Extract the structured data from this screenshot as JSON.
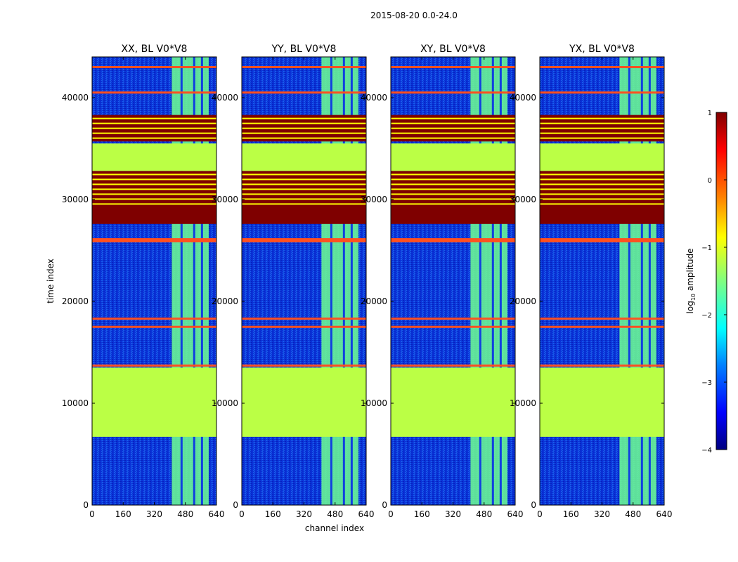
{
  "suptitle": "2015-08-20 0.0-24.0",
  "colorbar": {
    "label_prefix": "log",
    "label_sub": "10",
    "label_suffix": " amplitude",
    "range": [
      -4,
      1
    ],
    "ticks": [
      "1",
      "0",
      "−1",
      "−2",
      "−3",
      "−4"
    ],
    "tick_values": [
      1,
      0,
      -1,
      -2,
      -3,
      -4
    ],
    "stops": [
      "#00007f",
      "#0000ff",
      "#0080ff",
      "#00ffff",
      "#80ff80",
      "#ffff00",
      "#ff8000",
      "#ff0000",
      "#7f0000"
    ]
  },
  "chart_data": {
    "type": "heatmap",
    "xlabel": "channel index",
    "ylabel": "time index",
    "x_range": [
      0,
      640
    ],
    "y_range": [
      0,
      44000
    ],
    "x_ticks": [
      0,
      160,
      320,
      480,
      640
    ],
    "y_ticks": [
      0,
      10000,
      20000,
      30000,
      40000
    ],
    "x_tick_labels": [
      "0",
      "160",
      "320",
      "480",
      "640"
    ],
    "y_tick_labels": [
      "0",
      "10000",
      "20000",
      "30000",
      "40000"
    ],
    "panels": [
      {
        "title": "XX, BL V0*V8"
      },
      {
        "title": "YY, BL V0*V8"
      },
      {
        "title": "XY, BL V0*V8"
      },
      {
        "title": "YX, BL V0*V8"
      }
    ],
    "background_level": -3.2,
    "flagged_blocks": [
      {
        "y_from": 6700,
        "y_to": 13500,
        "value": -1.2
      },
      {
        "y_from": 32800,
        "y_to": 35500,
        "value": -1.2
      },
      {
        "y_from": 27600,
        "y_to": 29500,
        "value": 1
      },
      {
        "y_from": 29500,
        "y_to": 32800,
        "value": 1,
        "striped": true
      },
      {
        "y_from": 35700,
        "y_to": 38300,
        "value": 1,
        "striped": true
      }
    ],
    "rfi_band": {
      "x_from": 410,
      "x_to": 600,
      "value": -1.6
    },
    "flag_lines": [
      13700,
      17500,
      18300,
      25900,
      26100,
      40500,
      43000
    ],
    "time_axis_max": 44000
  }
}
